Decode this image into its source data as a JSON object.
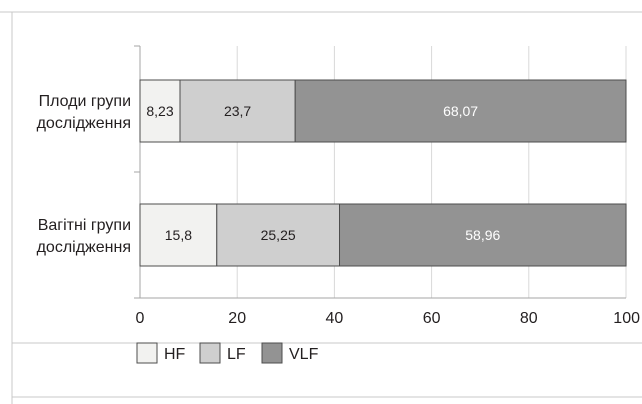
{
  "chart_data": {
    "type": "bar",
    "orientation": "horizontal",
    "stacked": true,
    "title": "",
    "xlabel": "",
    "ylabel": "",
    "xlim": [
      0,
      100
    ],
    "xticks": [
      0,
      20,
      40,
      60,
      80,
      100
    ],
    "xtick_labels": [
      "0",
      "20",
      "40",
      "60",
      "80",
      "100"
    ],
    "grid": "vertical",
    "legend_position": "bottom-left",
    "categories": [
      [
        "Плоди групи",
        "дослідження"
      ],
      [
        "Вагітні групи",
        "дослідження"
      ]
    ],
    "series": [
      {
        "name": "HF",
        "color": "#f2f2f0",
        "label_color": "#231f20",
        "values": [
          8.23,
          15.8
        ],
        "labels": [
          "8,23",
          "15,8"
        ]
      },
      {
        "name": "LF",
        "color": "#cfcfcf",
        "label_color": "#231f20",
        "values": [
          23.7,
          25.25
        ],
        "labels": [
          "23,7",
          "25,25"
        ]
      },
      {
        "name": "VLF",
        "color": "#939393",
        "label_color": "#ffffff",
        "values": [
          68.07,
          58.96
        ],
        "labels": [
          "68,07",
          "58,96"
        ]
      }
    ]
  }
}
